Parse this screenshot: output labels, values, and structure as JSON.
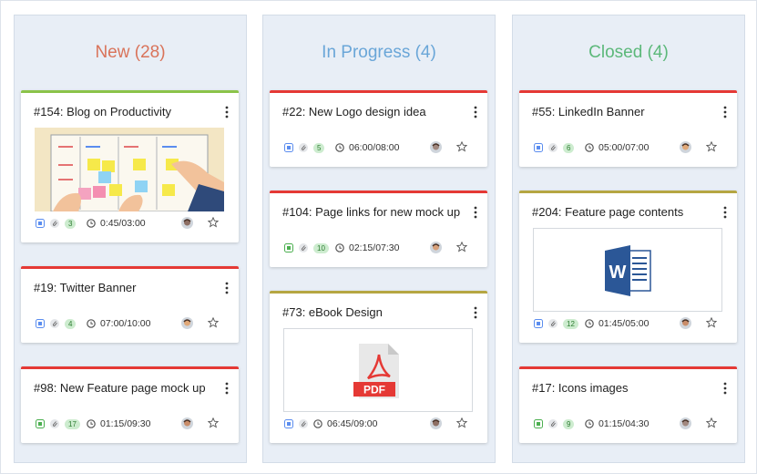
{
  "columns": [
    {
      "title": "New (28)",
      "color": "#d9735a",
      "cards": [
        {
          "title": "#154: Blog on Productivity",
          "accent": "#8bc34a",
          "tag": "#5b8def",
          "count": 3,
          "time": "0:45/03:00",
          "attachment": {
            "kind": "illustration"
          }
        },
        {
          "title": "#19: Twitter Banner",
          "accent": "#e53935",
          "tag": "#5b8def",
          "count": 4,
          "time": "07:00/10:00"
        },
        {
          "title": "#98: New Feature page mock up",
          "accent": "#e53935",
          "tag": "#4caf50",
          "count": 17,
          "time": "01:15/09:30"
        }
      ]
    },
    {
      "title": "In Progress (4)",
      "color": "#6aa6d8",
      "cards": [
        {
          "title": "#22: New Logo design idea",
          "accent": "#e53935",
          "tag": "#5b8def",
          "count": 5,
          "time": "06:00/08:00"
        },
        {
          "title": "#104: Page links for new mock up",
          "accent": "#e53935",
          "tag": "#4caf50",
          "count": 10,
          "time": "02:15/07:30"
        },
        {
          "title": "#73: eBook Design",
          "accent": "#b5a642",
          "tag": "#5b8def",
          "time": "06:45/09:00",
          "attachment": {
            "kind": "pdf",
            "label": "PDF"
          }
        }
      ]
    },
    {
      "title": "Closed (4)",
      "color": "#5cb87a",
      "cards": [
        {
          "title": "#55: LinkedIn Banner",
          "accent": "#e53935",
          "tag": "#5b8def",
          "count": 6,
          "time": "05:00/07:00"
        },
        {
          "title": "#204: Feature page contents",
          "accent": "#b5a642",
          "tag": "#5b8def",
          "count": 12,
          "time": "01:45/05:00",
          "attachment": {
            "kind": "word",
            "label": "W"
          }
        },
        {
          "title": "#17: Icons images",
          "accent": "#e53935",
          "tag": "#4caf50",
          "count": 9,
          "time": "01:15/04:30"
        }
      ]
    }
  ]
}
